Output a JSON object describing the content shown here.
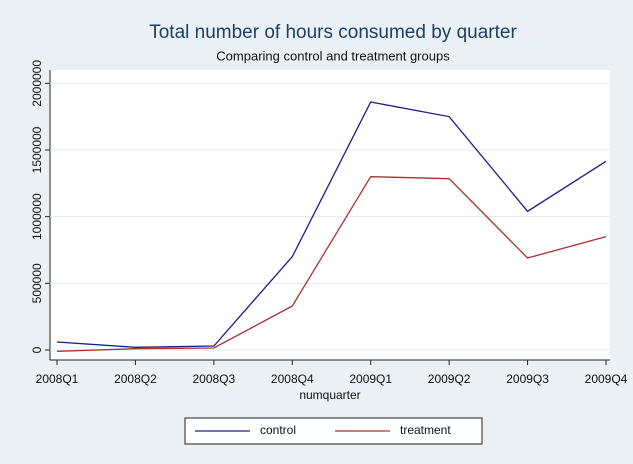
{
  "chart_data": {
    "type": "line",
    "title": "Total number of hours consumed by quarter",
    "subtitle": "Comparing control and treatment groups",
    "x_label": "numquarter",
    "categories": [
      "2008Q1",
      "2008Q2",
      "2008Q3",
      "2008Q4",
      "2009Q1",
      "2009Q2",
      "2009Q3",
      "2009Q4"
    ],
    "series": [
      {
        "name": "control",
        "color": "#1c1c8a",
        "values": [
          60000,
          20000,
          30000,
          700000,
          1860000,
          1750000,
          1040000,
          1415000
        ]
      },
      {
        "name": "treatment",
        "color": "#a83232",
        "values": [
          -10000,
          10000,
          15000,
          330000,
          1300000,
          1285000,
          690000,
          850000
        ]
      }
    ],
    "ylim": [
      -75000,
      2100000
    ],
    "yticks": [
      0,
      500000,
      1000000,
      1500000,
      2000000
    ],
    "grid": true
  }
}
